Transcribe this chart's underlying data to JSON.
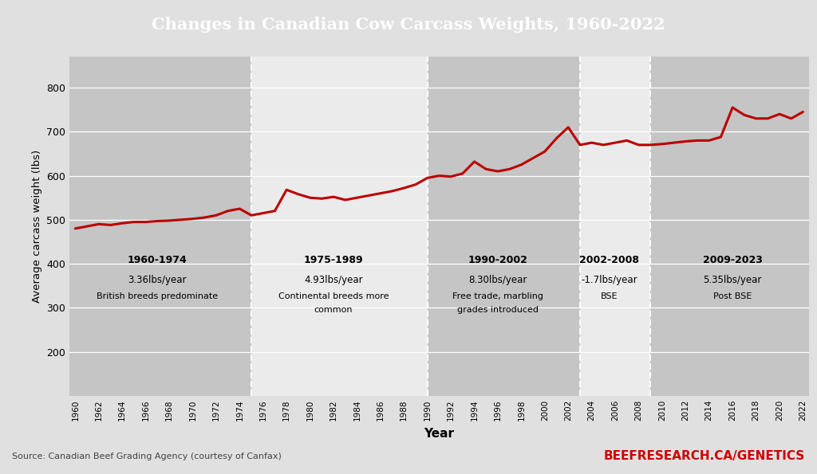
{
  "title": "Changes in Canadian Cow Carcass Weights, 1960-2022",
  "xlabel": "Year",
  "ylabel": "Average carcass weight (lbs)",
  "title_bg_color": "#424242",
  "title_text_color": "#ffffff",
  "plot_bg_color": "#d4d4d4",
  "fig_bg_color": "#e0e0e0",
  "line_color": "#bb0000",
  "line_width": 2.2,
  "ylim": [
    100,
    870
  ],
  "yticks": [
    200,
    300,
    400,
    500,
    600,
    700,
    800
  ],
  "source_text": "Source: Canadian Beef Grading Agency (courtesy of Canfax)",
  "watermark_text": "BEEFRESEARCH.CA/GENETICS",
  "watermark_color": "#cc0000",
  "years": [
    1960,
    1961,
    1962,
    1963,
    1964,
    1965,
    1966,
    1967,
    1968,
    1969,
    1970,
    1971,
    1972,
    1973,
    1974,
    1975,
    1976,
    1977,
    1978,
    1979,
    1980,
    1981,
    1982,
    1983,
    1984,
    1985,
    1986,
    1987,
    1988,
    1989,
    1990,
    1991,
    1992,
    1993,
    1994,
    1995,
    1996,
    1997,
    1998,
    1999,
    2000,
    2001,
    2002,
    2003,
    2004,
    2005,
    2006,
    2007,
    2008,
    2009,
    2010,
    2011,
    2012,
    2013,
    2014,
    2015,
    2016,
    2017,
    2018,
    2019,
    2020,
    2021,
    2022
  ],
  "weights": [
    480,
    485,
    490,
    488,
    492,
    495,
    495,
    497,
    498,
    500,
    502,
    505,
    510,
    520,
    525,
    510,
    515,
    520,
    568,
    558,
    550,
    548,
    552,
    545,
    550,
    555,
    560,
    565,
    572,
    580,
    595,
    600,
    598,
    605,
    632,
    615,
    610,
    615,
    625,
    640,
    655,
    685,
    710,
    670,
    675,
    670,
    675,
    680,
    670,
    670,
    672,
    675,
    678,
    680,
    680,
    688,
    755,
    738,
    730,
    730,
    740,
    730,
    745
  ],
  "period_boundaries": [
    1975,
    1990,
    2003,
    2009
  ],
  "period_labels": [
    {
      "year_range": "1960-1974",
      "rate": "3.36lbs/year",
      "desc": "British breeds predominate",
      "x_center": 1967,
      "desc2": null
    },
    {
      "year_range": "1975-1989",
      "rate": "4.93lbs/year",
      "desc": "Continental breeds more",
      "x_center": 1982,
      "desc2": "common"
    },
    {
      "year_range": "1990-2002",
      "rate": "8.30lbs/year",
      "desc": "Free trade, marbling",
      "x_center": 1996,
      "desc2": "grades introduced"
    },
    {
      "year_range": "2002-2008",
      "rate": "-1.7lbs/year",
      "desc": "BSE",
      "x_center": 2005.5,
      "desc2": null
    },
    {
      "year_range": "2009-2023",
      "rate": "5.35lbs/year",
      "desc": "Post BSE",
      "x_center": 2016,
      "desc2": null
    }
  ],
  "bg_alternating": [
    {
      "xmin": 1959.5,
      "xmax": 1975,
      "color": "#c5c5c5"
    },
    {
      "xmin": 1975,
      "xmax": 1990,
      "color": "#ebebeb"
    },
    {
      "xmin": 1990,
      "xmax": 2003,
      "color": "#c5c5c5"
    },
    {
      "xmin": 2003,
      "xmax": 2009,
      "color": "#ebebeb"
    },
    {
      "xmin": 2009,
      "xmax": 2022.5,
      "color": "#c5c5c5"
    }
  ]
}
